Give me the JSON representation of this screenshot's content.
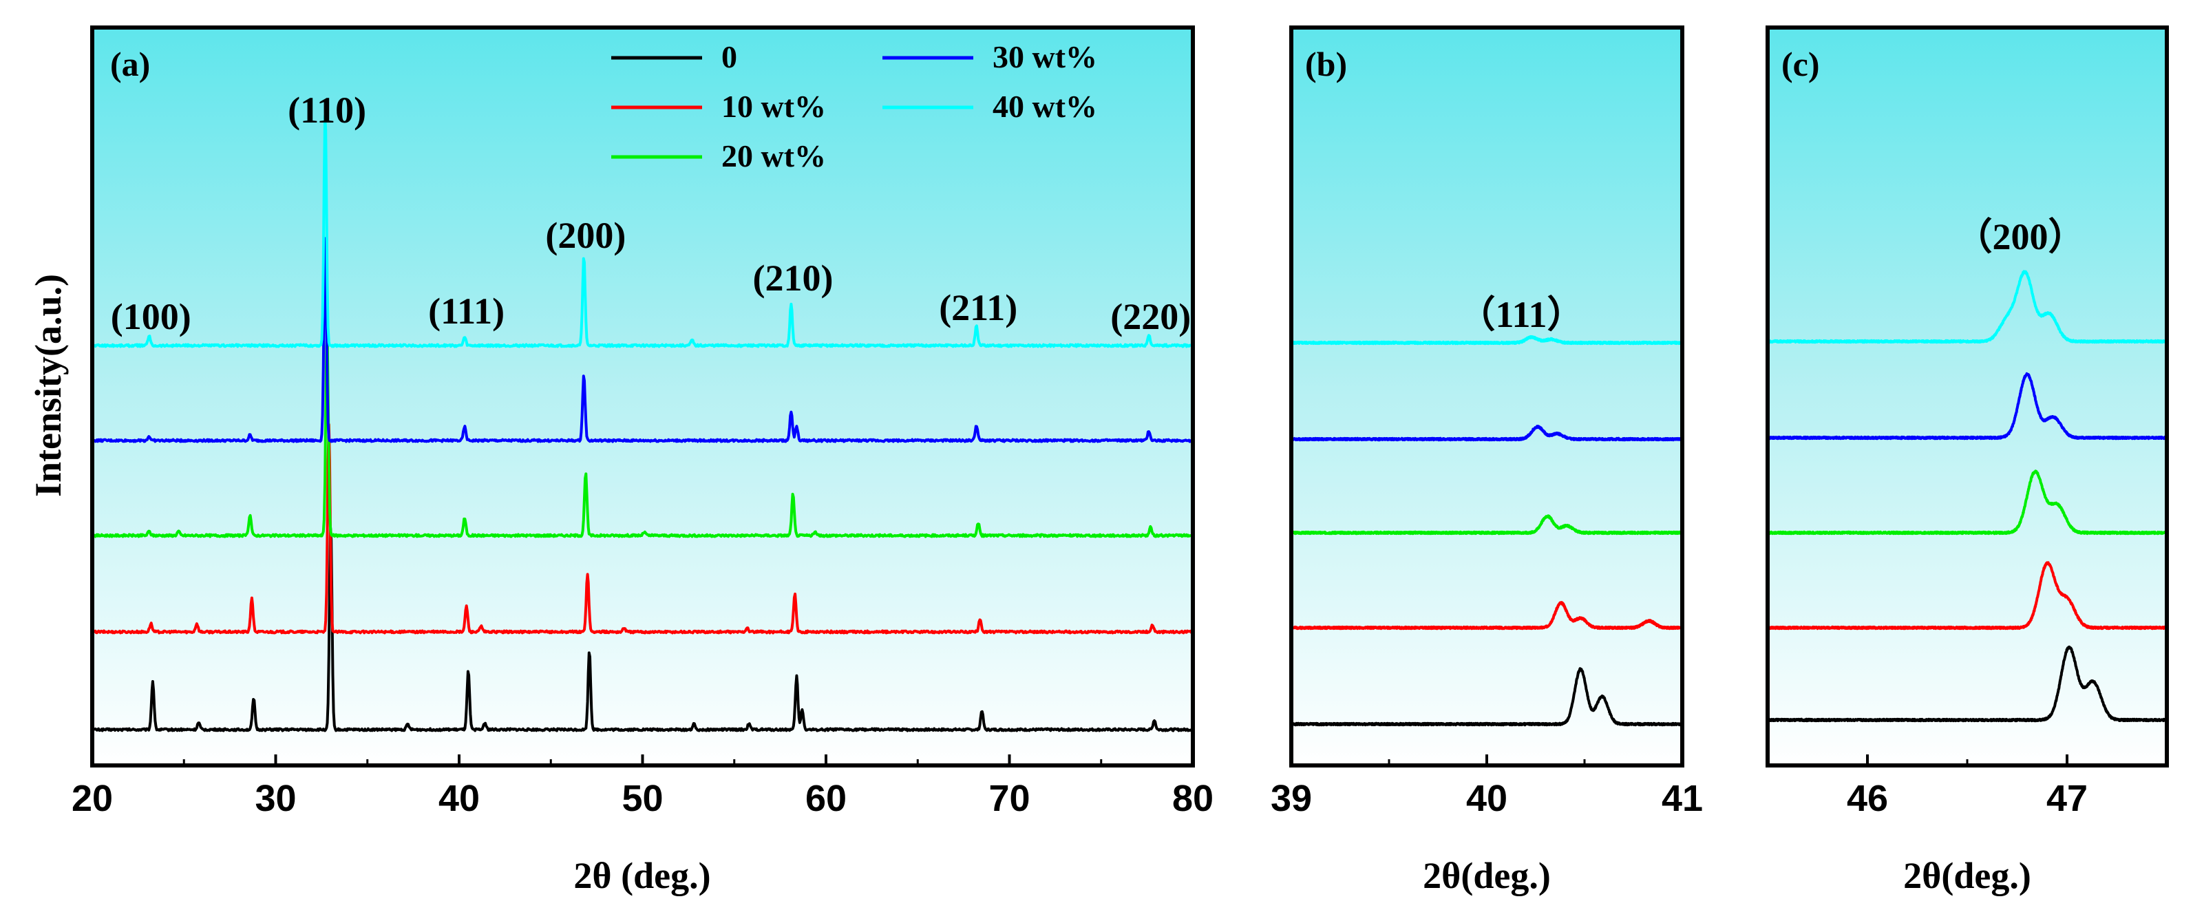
{
  "chart_data": [
    {
      "panel": "(a)",
      "type": "line",
      "xlabel": "2θ (deg.)",
      "ylabel": "Intensity(a.u.)",
      "xlim": [
        20,
        80
      ],
      "xticks": [
        "20",
        "30",
        "40",
        "50",
        "60",
        "70",
        "80"
      ],
      "peak_labels": [
        {
          "text": "(100)",
          "x": 23.2
        },
        {
          "text": "(110)",
          "x": 32.8
        },
        {
          "text": "(111)",
          "x": 40.4
        },
        {
          "text": "(200)",
          "x": 46.9
        },
        {
          "text": "(210)",
          "x": 58.2
        },
        {
          "text": "(211)",
          "x": 68.3
        },
        {
          "text": "(220)",
          "x": 77.7
        }
      ],
      "legend": [
        "0",
        "10 wt%",
        "20 wt%",
        "30 wt%",
        "40 wt%"
      ],
      "series": [
        {
          "name": "0",
          "color": "#000000",
          "offset": 0,
          "peaks": [
            [
              23.3,
              70
            ],
            [
              25.8,
              10
            ],
            [
              28.8,
              45
            ],
            [
              33.0,
              300
            ],
            [
              37.2,
              8
            ],
            [
              40.5,
              85
            ],
            [
              41.4,
              10
            ],
            [
              47.1,
              115
            ],
            [
              52.8,
              8
            ],
            [
              55.8,
              8
            ],
            [
              58.4,
              78
            ],
            [
              58.7,
              30
            ],
            [
              68.5,
              28
            ],
            [
              77.9,
              14
            ]
          ]
        },
        {
          "name": "10 wt%",
          "color": "#ff0000",
          "offset": 1,
          "peaks": [
            [
              23.2,
              12
            ],
            [
              25.7,
              12
            ],
            [
              28.7,
              48
            ],
            [
              32.9,
              300
            ],
            [
              40.4,
              38
            ],
            [
              41.2,
              8
            ],
            [
              47.0,
              85
            ],
            [
              49.0,
              6
            ],
            [
              55.7,
              6
            ],
            [
              58.3,
              55
            ],
            [
              68.4,
              18
            ],
            [
              77.8,
              10
            ]
          ]
        },
        {
          "name": "20 wt%",
          "color": "#00ee00",
          "offset": 2,
          "peaks": [
            [
              23.1,
              6
            ],
            [
              24.7,
              6
            ],
            [
              28.6,
              30
            ],
            [
              32.8,
              300
            ],
            [
              40.3,
              25
            ],
            [
              46.9,
              90
            ],
            [
              50.1,
              5
            ],
            [
              58.2,
              60
            ],
            [
              59.4,
              5
            ],
            [
              68.3,
              18
            ],
            [
              77.7,
              12
            ]
          ]
        },
        {
          "name": "30 wt%",
          "color": "#0000ff",
          "offset": 3,
          "peaks": [
            [
              23.1,
              6
            ],
            [
              28.6,
              8
            ],
            [
              32.7,
              300
            ],
            [
              40.3,
              20
            ],
            [
              46.8,
              95
            ],
            [
              58.1,
              42
            ],
            [
              58.4,
              20
            ],
            [
              68.2,
              22
            ],
            [
              77.6,
              14
            ]
          ]
        },
        {
          "name": "40 wt%",
          "color": "#00ffff",
          "offset": 4,
          "peaks": [
            [
              23.1,
              14
            ],
            [
              32.7,
              340
            ],
            [
              40.3,
              12
            ],
            [
              46.8,
              130
            ],
            [
              52.7,
              8
            ],
            [
              58.1,
              60
            ],
            [
              68.2,
              28
            ],
            [
              77.6,
              16
            ]
          ]
        }
      ]
    },
    {
      "panel": "(b)",
      "type": "line",
      "xlabel": "2θ(deg.)",
      "xlim": [
        39,
        41
      ],
      "xticks": [
        "39",
        "40",
        "41"
      ],
      "peak_label": "（111）",
      "series": [
        {
          "name": "0",
          "color": "#000000",
          "offset": 0,
          "peaks": [
            [
              40.48,
              80
            ],
            [
              40.59,
              40
            ]
          ]
        },
        {
          "name": "10 wt%",
          "color": "#ff0000",
          "offset": 1,
          "peaks": [
            [
              40.38,
              36
            ],
            [
              40.48,
              14
            ],
            [
              40.83,
              10
            ]
          ]
        },
        {
          "name": "20 wt%",
          "color": "#00ee00",
          "offset": 2,
          "peaks": [
            [
              40.31,
              24
            ],
            [
              40.41,
              10
            ]
          ]
        },
        {
          "name": "30 wt%",
          "color": "#0000ff",
          "offset": 3,
          "peaks": [
            [
              40.26,
              18
            ],
            [
              40.36,
              8
            ]
          ]
        },
        {
          "name": "40 wt%",
          "color": "#00ffff",
          "offset": 4,
          "peaks": [
            [
              40.23,
              8
            ],
            [
              40.33,
              5
            ]
          ]
        }
      ]
    },
    {
      "panel": "(c)",
      "type": "line",
      "xlabel": "2θ(deg.)",
      "xlim": [
        45.5,
        47.5
      ],
      "xticks": [
        "46",
        "47"
      ],
      "peak_label": "（200）",
      "series": [
        {
          "name": "0",
          "color": "#000000",
          "offset": 0,
          "peaks": [
            [
              47.01,
              105
            ],
            [
              47.13,
              55
            ]
          ]
        },
        {
          "name": "10 wt%",
          "color": "#ff0000",
          "offset": 1,
          "peaks": [
            [
              46.9,
              92
            ],
            [
              47.0,
              40
            ]
          ]
        },
        {
          "name": "20 wt%",
          "color": "#00ee00",
          "offset": 2,
          "peaks": [
            [
              46.84,
              88
            ],
            [
              46.95,
              40
            ]
          ]
        },
        {
          "name": "30 wt%",
          "color": "#0000ff",
          "offset": 3,
          "peaks": [
            [
              46.8,
              92
            ],
            [
              46.93,
              30
            ]
          ]
        },
        {
          "name": "40 wt%",
          "color": "#00ffff",
          "offset": 4,
          "peaks": [
            [
              46.7,
              30
            ],
            [
              46.79,
              98
            ],
            [
              46.91,
              40
            ]
          ]
        }
      ]
    }
  ]
}
